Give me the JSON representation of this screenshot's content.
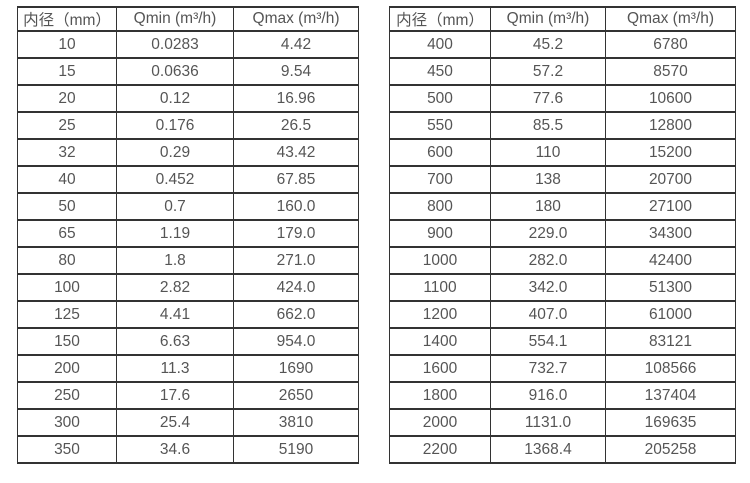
{
  "colors": {
    "border": "#333333",
    "text": "#555555",
    "background": "#ffffff"
  },
  "chart_data": [
    {
      "type": "table",
      "name": "flow-spec-table-small-diameters",
      "headers": [
        "内径（mm）",
        "Qmin (m³/h)",
        "Qmax (m³/h)"
      ],
      "rows": [
        [
          "10",
          "0.0283",
          "4.42"
        ],
        [
          "15",
          "0.0636",
          "9.54"
        ],
        [
          "20",
          "0.12",
          "16.96"
        ],
        [
          "25",
          "0.176",
          "26.5"
        ],
        [
          "32",
          "0.29",
          "43.42"
        ],
        [
          "40",
          "0.452",
          "67.85"
        ],
        [
          "50",
          "0.7",
          "160.0"
        ],
        [
          "65",
          "1.19",
          "179.0"
        ],
        [
          "80",
          "1.8",
          "271.0"
        ],
        [
          "100",
          "2.82",
          "424.0"
        ],
        [
          "125",
          "4.41",
          "662.0"
        ],
        [
          "150",
          "6.63",
          "954.0"
        ],
        [
          "200",
          "11.3",
          "1690"
        ],
        [
          "250",
          "17.6",
          "2650"
        ],
        [
          "300",
          "25.4",
          "3810"
        ],
        [
          "350",
          "34.6",
          "5190"
        ]
      ]
    },
    {
      "type": "table",
      "name": "flow-spec-table-large-diameters",
      "headers": [
        "内径（mm）",
        "Qmin (m³/h)",
        "Qmax (m³/h)"
      ],
      "rows": [
        [
          "400",
          "45.2",
          "6780"
        ],
        [
          "450",
          "57.2",
          "8570"
        ],
        [
          "500",
          "77.6",
          "10600"
        ],
        [
          "550",
          "85.5",
          "12800"
        ],
        [
          "600",
          "110",
          "15200"
        ],
        [
          "700",
          "138",
          "20700"
        ],
        [
          "800",
          "180",
          "27100"
        ],
        [
          "900",
          "229.0",
          "34300"
        ],
        [
          "1000",
          "282.0",
          "42400"
        ],
        [
          "1100",
          "342.0",
          "51300"
        ],
        [
          "1200",
          "407.0",
          "61000"
        ],
        [
          "1400",
          "554.1",
          "83121"
        ],
        [
          "1600",
          "732.7",
          "108566"
        ],
        [
          "1800",
          "916.0",
          "137404"
        ],
        [
          "2000",
          "1131.0",
          "169635"
        ],
        [
          "2200",
          "1368.4",
          "205258"
        ]
      ]
    }
  ]
}
